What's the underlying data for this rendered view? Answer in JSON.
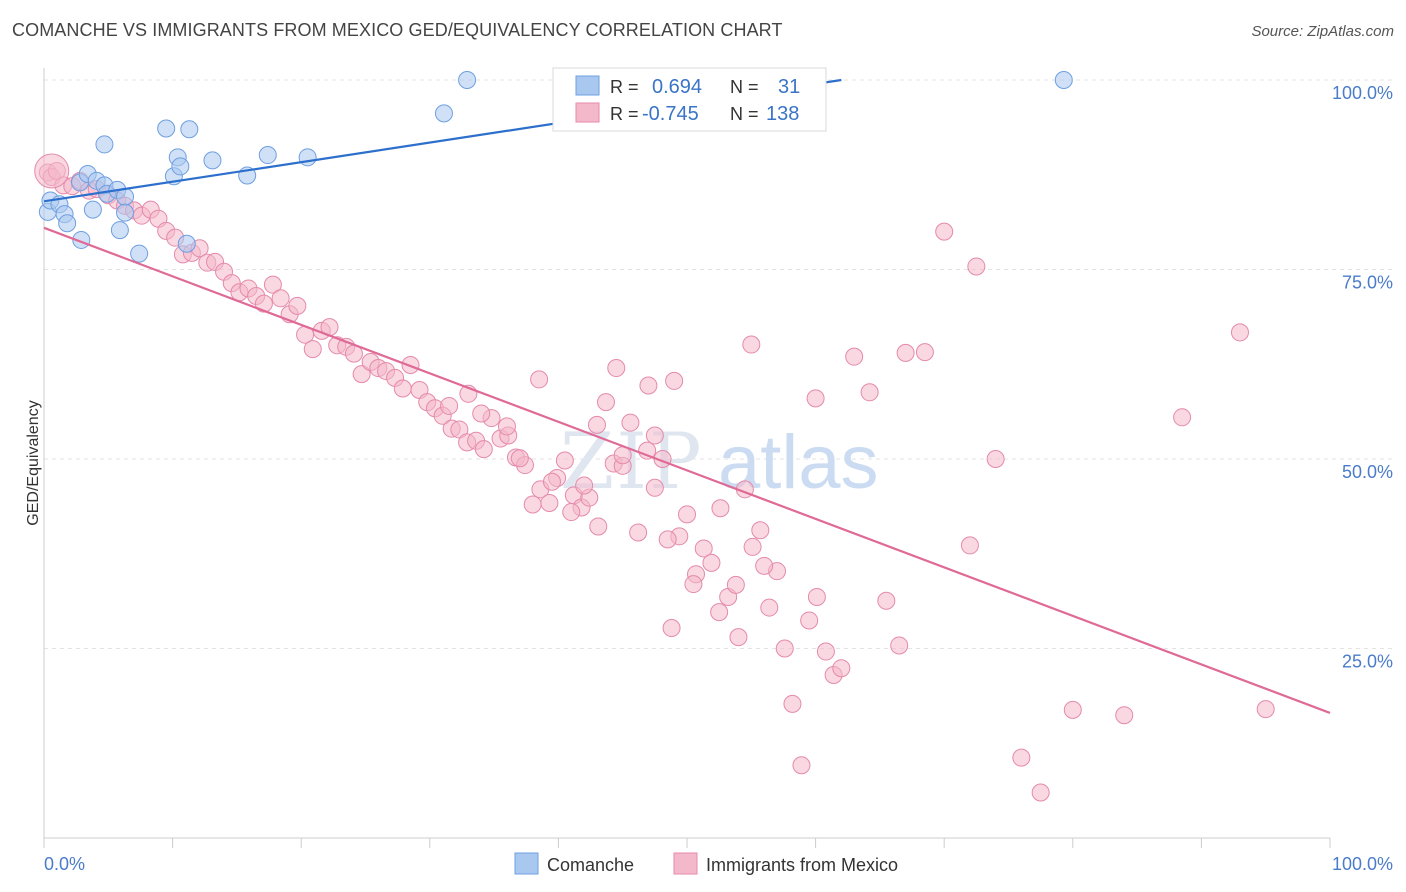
{
  "header": {
    "title": "COMANCHE VS IMMIGRANTS FROM MEXICO GED/EQUIVALENCY CORRELATION CHART",
    "source": "Source: ZipAtlas.com"
  },
  "watermark": {
    "zip": "ZIP",
    "atlas": "atlas"
  },
  "chart_data": {
    "type": "scatter",
    "title": "COMANCHE VS IMMIGRANTS FROM MEXICO GED/EQUIVALENCY CORRELATION CHART",
    "xlabel": "",
    "ylabel": "GED/Equivalency",
    "xlim": [
      0,
      100
    ],
    "ylim": [
      0,
      102
    ],
    "x_tick_labels": [
      "0.0%",
      "100.0%"
    ],
    "y_ticks": [
      25,
      50,
      75,
      100
    ],
    "y_tick_labels": [
      "25.0%",
      "50.0%",
      "75.0%",
      "100.0%"
    ],
    "grid": true,
    "legend_position": "bottom",
    "stats_box": {
      "r_label": "R =",
      "n_label": "N =",
      "rows": [
        {
          "r": "0.694",
          "n": "31"
        },
        {
          "r": "-0.745",
          "n": "138"
        }
      ]
    },
    "series": [
      {
        "name": "Comanche",
        "color": "#a9c8f0",
        "line_color": "#2c6fcc",
        "trend": {
          "x": [
            0,
            62
          ],
          "y": [
            84,
            100
          ]
        },
        "points": [
          [
            0.3,
            82.6
          ],
          [
            0.5,
            84.1
          ],
          [
            1.2,
            83.6
          ],
          [
            1.6,
            82.3
          ],
          [
            1.8,
            81.1
          ],
          [
            2.8,
            86.5
          ],
          [
            2.9,
            78.9
          ],
          [
            3.4,
            87.6
          ],
          [
            3.8,
            82.9
          ],
          [
            4.1,
            86.7
          ],
          [
            4.7,
            86.1
          ],
          [
            4.7,
            91.5
          ],
          [
            4.9,
            85.0
          ],
          [
            5.7,
            85.5
          ],
          [
            5.9,
            80.2
          ],
          [
            6.3,
            84.6
          ],
          [
            6.3,
            82.5
          ],
          [
            7.4,
            77.1
          ],
          [
            9.5,
            93.6
          ],
          [
            10.1,
            87.3
          ],
          [
            10.4,
            89.8
          ],
          [
            10.6,
            88.6
          ],
          [
            11.1,
            78.4
          ],
          [
            11.3,
            93.5
          ],
          [
            13.1,
            89.4
          ],
          [
            15.8,
            87.4
          ],
          [
            17.4,
            90.1
          ],
          [
            20.5,
            89.8
          ],
          [
            31.1,
            95.6
          ],
          [
            32.9,
            100.0
          ],
          [
            79.3,
            100.0
          ]
        ]
      },
      {
        "name": "Immigrants from Mexico",
        "color": "#f4b8cb",
        "line_color": "#e06a96",
        "trend": {
          "x": [
            0,
            100
          ],
          "y": [
            80.5,
            16.5
          ]
        },
        "points": [
          [
            0.3,
            87.8
          ],
          [
            0.6,
            87.2
          ],
          [
            1.0,
            88.0
          ],
          [
            1.5,
            86.1
          ],
          [
            2.2,
            86.0
          ],
          [
            2.8,
            86.7
          ],
          [
            3.5,
            85.4
          ],
          [
            4.1,
            85.6
          ],
          [
            5.0,
            84.8
          ],
          [
            5.7,
            84.1
          ],
          [
            6.3,
            83.4
          ],
          [
            7.0,
            82.8
          ],
          [
            7.6,
            82.1
          ],
          [
            8.3,
            82.9
          ],
          [
            8.9,
            81.7
          ],
          [
            9.5,
            80.1
          ],
          [
            10.2,
            79.2
          ],
          [
            10.8,
            77.0
          ],
          [
            11.5,
            77.2
          ],
          [
            12.1,
            77.8
          ],
          [
            12.7,
            75.9
          ],
          [
            13.3,
            76.0
          ],
          [
            14.0,
            74.7
          ],
          [
            14.6,
            73.2
          ],
          [
            15.2,
            72.0
          ],
          [
            15.9,
            72.5
          ],
          [
            16.5,
            71.5
          ],
          [
            17.1,
            70.5
          ],
          [
            17.8,
            73.0
          ],
          [
            18.4,
            71.2
          ],
          [
            19.1,
            69.1
          ],
          [
            19.7,
            70.2
          ],
          [
            20.3,
            66.4
          ],
          [
            20.9,
            64.5
          ],
          [
            21.6,
            66.9
          ],
          [
            22.2,
            67.4
          ],
          [
            22.8,
            65.0
          ],
          [
            23.5,
            64.8
          ],
          [
            24.1,
            63.9
          ],
          [
            24.7,
            61.2
          ],
          [
            25.4,
            62.8
          ],
          [
            26.0,
            62.0
          ],
          [
            26.6,
            61.6
          ],
          [
            27.3,
            60.7
          ],
          [
            27.9,
            59.3
          ],
          [
            28.5,
            62.4
          ],
          [
            29.2,
            59.1
          ],
          [
            29.8,
            57.5
          ],
          [
            30.4,
            56.7
          ],
          [
            31.0,
            55.7
          ],
          [
            31.7,
            54.0
          ],
          [
            32.3,
            53.9
          ],
          [
            32.9,
            52.2
          ],
          [
            33.6,
            52.4
          ],
          [
            34.2,
            51.3
          ],
          [
            34.8,
            55.4
          ],
          [
            35.5,
            52.7
          ],
          [
            36.1,
            53.1
          ],
          [
            36.7,
            50.2
          ],
          [
            37.4,
            49.2
          ],
          [
            38.0,
            44.0
          ],
          [
            38.6,
            46.0
          ],
          [
            39.3,
            44.2
          ],
          [
            39.9,
            47.5
          ],
          [
            40.5,
            49.8
          ],
          [
            41.2,
            45.2
          ],
          [
            41.8,
            43.6
          ],
          [
            42.4,
            44.9
          ],
          [
            43.1,
            41.1
          ],
          [
            43.7,
            57.5
          ],
          [
            44.3,
            49.4
          ],
          [
            45.0,
            49.1
          ],
          [
            45.6,
            54.8
          ],
          [
            46.2,
            40.3
          ],
          [
            46.9,
            51.1
          ],
          [
            47.5,
            53.1
          ],
          [
            48.1,
            50.0
          ],
          [
            48.8,
            27.7
          ],
          [
            49.4,
            39.8
          ],
          [
            50.0,
            42.7
          ],
          [
            50.7,
            34.8
          ],
          [
            51.3,
            38.2
          ],
          [
            51.9,
            36.3
          ],
          [
            52.6,
            43.5
          ],
          [
            53.2,
            31.8
          ],
          [
            53.8,
            33.4
          ],
          [
            54.5,
            46.0
          ],
          [
            55.1,
            38.4
          ],
          [
            55.7,
            40.6
          ],
          [
            56.4,
            30.4
          ],
          [
            57.0,
            35.2
          ],
          [
            57.6,
            25.0
          ],
          [
            58.2,
            17.7
          ],
          [
            58.9,
            9.6
          ],
          [
            59.5,
            28.7
          ],
          [
            60.1,
            31.8
          ],
          [
            60.8,
            24.6
          ],
          [
            61.4,
            21.5
          ],
          [
            62.0,
            22.4
          ],
          [
            63.0,
            63.5
          ],
          [
            64.2,
            58.8
          ],
          [
            67.0,
            64.0
          ],
          [
            68.5,
            64.1
          ],
          [
            70.0,
            80.0
          ],
          [
            72.0,
            38.6
          ],
          [
            74.0,
            50.0
          ],
          [
            76.0,
            10.6
          ],
          [
            77.5,
            6.0
          ],
          [
            80.0,
            16.9
          ],
          [
            84.0,
            16.2
          ],
          [
            88.5,
            55.5
          ],
          [
            93.0,
            66.7
          ],
          [
            95.0,
            17.0
          ],
          [
            72.5,
            75.4
          ],
          [
            65.5,
            31.3
          ],
          [
            66.5,
            25.4
          ],
          [
            55.0,
            65.1
          ],
          [
            60.0,
            58.0
          ],
          [
            47.0,
            59.7
          ],
          [
            49.0,
            60.3
          ],
          [
            44.5,
            62.0
          ],
          [
            38.5,
            60.5
          ],
          [
            34.0,
            56.0
          ],
          [
            31.5,
            57.0
          ],
          [
            33.0,
            58.6
          ],
          [
            36.0,
            54.3
          ],
          [
            37.0,
            50.1
          ],
          [
            39.5,
            47.0
          ],
          [
            41.0,
            43.0
          ],
          [
            42.0,
            46.5
          ],
          [
            43.0,
            54.5
          ],
          [
            45.0,
            50.5
          ],
          [
            47.5,
            46.2
          ],
          [
            48.5,
            39.4
          ],
          [
            50.5,
            33.5
          ],
          [
            52.5,
            29.8
          ],
          [
            54.0,
            26.5
          ],
          [
            56.0,
            35.9
          ]
        ]
      }
    ]
  }
}
